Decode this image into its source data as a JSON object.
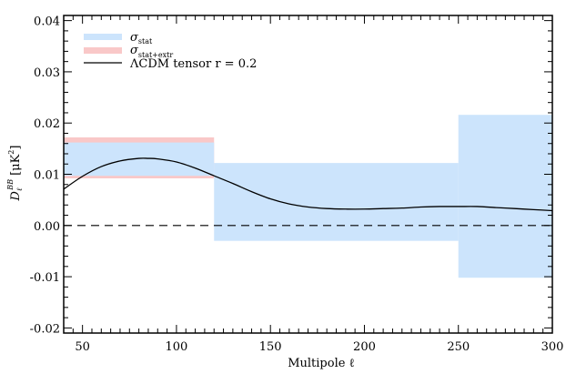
{
  "chart_data": {
    "type": "area",
    "xlabel": "Multipole ℓ",
    "ylabel": "D",
    "ylabel_sub": "ℓ",
    "ylabel_sup": "BB",
    "ylabel_units": "[μK",
    "ylabel_units_sup": "2",
    "ylabel_units_close": "]",
    "xlim": [
      40,
      300
    ],
    "ylim": [
      -0.021,
      0.041
    ],
    "xticks": [
      50,
      100,
      150,
      200,
      250,
      300
    ],
    "xtick_labels": [
      "50",
      "100",
      "150",
      "200",
      "250",
      "300"
    ],
    "yticks": [
      -0.02,
      -0.01,
      0.0,
      0.01,
      0.02,
      0.03,
      0.04
    ],
    "ytick_labels": [
      "-0.02",
      "-0.01",
      "0.00",
      "0.01",
      "0.02",
      "0.03",
      "0.04"
    ],
    "bins": [
      {
        "x0": 40,
        "x1": 120,
        "stat": [
          0.0097,
          0.0162
        ],
        "syst": [
          0.0092,
          0.0172
        ]
      },
      {
        "x0": 120,
        "x1": 250,
        "stat": [
          -0.003,
          0.0122
        ]
      },
      {
        "x0": 250,
        "x1": 300,
        "stat": [
          -0.0102,
          0.0216
        ]
      }
    ],
    "model_curve": {
      "name": "ΛCDM tensor r = 0.2",
      "x": [
        40,
        50,
        60,
        70,
        80,
        85,
        90,
        100,
        110,
        120,
        130,
        140,
        150,
        160,
        170,
        180,
        190,
        200,
        210,
        220,
        230,
        240,
        250,
        260,
        270,
        280,
        290,
        300
      ],
      "y": [
        0.0071,
        0.0096,
        0.0115,
        0.0126,
        0.0131,
        0.0131,
        0.013,
        0.0124,
        0.0112,
        0.0097,
        0.0082,
        0.0066,
        0.0052,
        0.0042,
        0.0036,
        0.0033,
        0.0032,
        0.0032,
        0.0033,
        0.0034,
        0.0036,
        0.0037,
        0.0037,
        0.0037,
        0.0035,
        0.0033,
        0.0031,
        0.0029
      ]
    },
    "reference_line": {
      "y": 0.0,
      "style": "dashed"
    },
    "legend": {
      "position": "top-left",
      "entries": [
        {
          "label": "σ",
          "sub": "stat",
          "color": "#cce4fc"
        },
        {
          "label": "σ",
          "sub": "stat+extr",
          "color": "#f9c8c8"
        },
        {
          "label": "ΛCDM tensor r = 0.2",
          "sub": "",
          "color": "#000000"
        }
      ]
    },
    "colors": {
      "stat": "#cce4fc",
      "syst": "#f9c8c8",
      "curve": "#000000"
    }
  }
}
